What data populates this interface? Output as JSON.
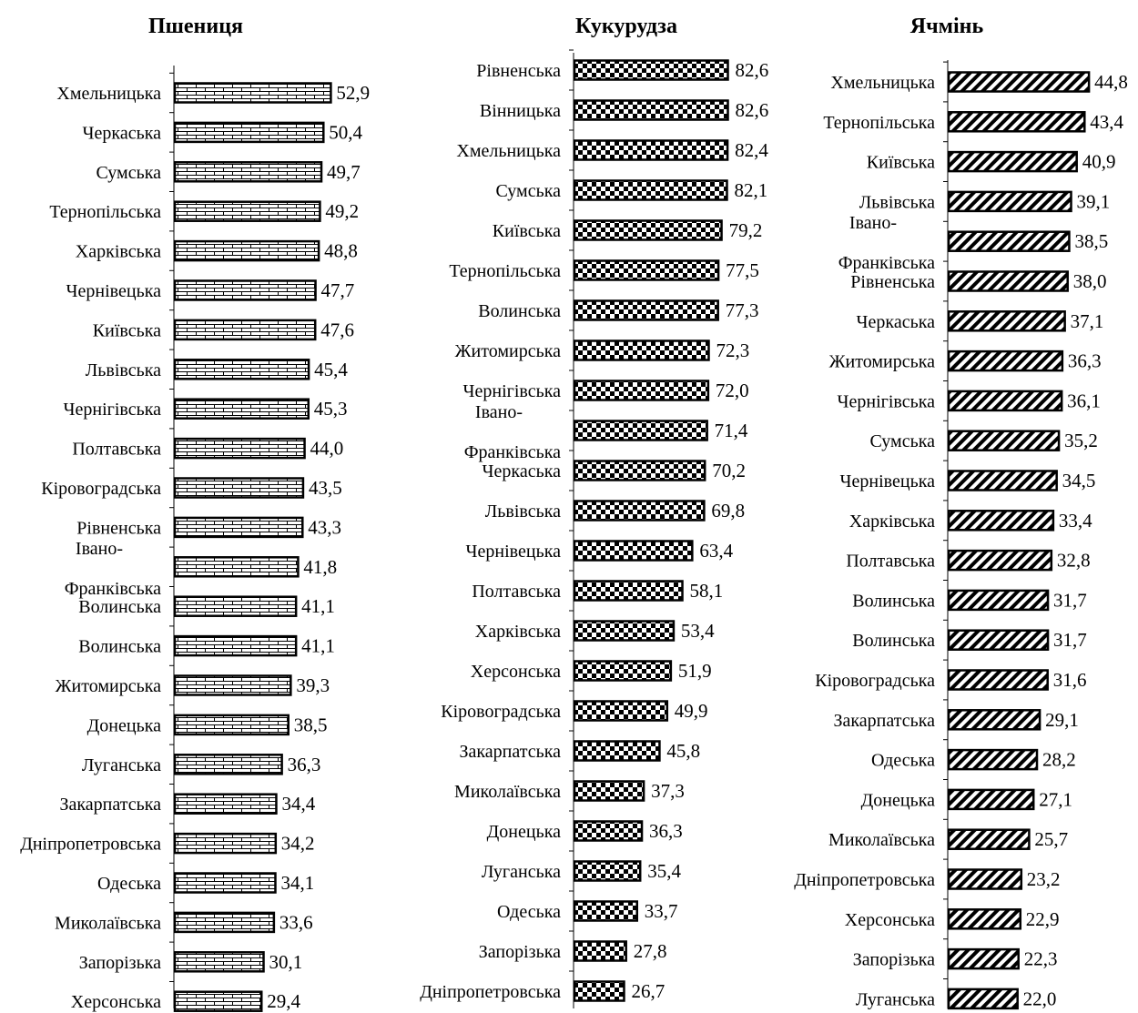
{
  "chart_data": [
    {
      "type": "bar",
      "orientation": "horizontal",
      "title": "Пшениця",
      "categories": [
        "Хмельницька",
        "Черкаська",
        "Сумська",
        "Тернопільська",
        "Харківська",
        "Чернівецька",
        "Київська",
        "Львівська",
        "Чернігівська",
        "Полтавська",
        "Кіровоградська",
        "Рівненська",
        "Івано-Франківська",
        "Волинська",
        "Волинська",
        "Житомирська",
        "Донецька",
        "Луганська",
        "Закарпатська",
        "Дніпропетровська",
        "Одеська",
        "Миколаївська",
        "Запорізька",
        "Херсонська"
      ],
      "values": [
        52.9,
        50.4,
        49.7,
        49.2,
        48.8,
        47.7,
        47.6,
        45.4,
        45.3,
        44.0,
        43.5,
        43.3,
        41.8,
        41.1,
        41.1,
        39.3,
        38.5,
        36.3,
        34.4,
        34.2,
        34.1,
        33.6,
        30.1,
        29.4
      ],
      "value_labels": [
        "52,9",
        "50,4",
        "49,7",
        "49,2",
        "48,8",
        "47,7",
        "47,6",
        "45,4",
        "45,3",
        "44,0",
        "43,5",
        "43,3",
        "41,8",
        "41,1",
        "41,1",
        "39,3",
        "38,5",
        "36,3",
        "34,4",
        "34,2",
        "34,1",
        "33,6",
        "30,1",
        "29,4"
      ],
      "pattern": "brick"
    },
    {
      "type": "bar",
      "orientation": "horizontal",
      "title": "Кукурудза",
      "categories": [
        "Рівненська",
        "Вінницька",
        "Хмельницька",
        "Сумська",
        "Київська",
        "Тернопільська",
        "Волинська",
        "Житомирська",
        "Чернігівська",
        "Івано-Франківська",
        "Черкаська",
        "Львівська",
        "Чернівецька",
        "Полтавська",
        "Харківська",
        "Херсонська",
        "Кіровоградська",
        "Закарпатська",
        "Миколаївська",
        "Донецька",
        "Луганська",
        "Одеська",
        "Запорізька",
        "Дніпропетровська"
      ],
      "values": [
        82.6,
        82.6,
        82.4,
        82.1,
        79.2,
        77.5,
        77.3,
        72.3,
        72.0,
        71.4,
        70.2,
        69.8,
        63.4,
        58.1,
        53.4,
        51.9,
        49.9,
        45.8,
        37.3,
        36.3,
        35.4,
        33.7,
        27.8,
        26.7
      ],
      "value_labels": [
        "82,6",
        "82,6",
        "82,4",
        "82,1",
        "79,2",
        "77,5",
        "77,3",
        "72,3",
        "72,0",
        "71,4",
        "70,2",
        "69,8",
        "63,4",
        "58,1",
        "53,4",
        "51,9",
        "49,9",
        "45,8",
        "37,3",
        "36,3",
        "35,4",
        "33,7",
        "27,8",
        "26,7"
      ],
      "pattern": "checker"
    },
    {
      "type": "bar",
      "orientation": "horizontal",
      "title": "Ячмінь",
      "categories": [
        "Хмельницька",
        "Тернопільська",
        "Київська",
        "Львівська",
        "Івано-Франківська",
        "Рівненська",
        "Черкаська",
        "Житомирська",
        "Чернігівська",
        "Сумська",
        "Чернівецька",
        "Харківська",
        "Полтавська",
        "Волинська",
        "Волинська",
        "Кіровоградська",
        "Закарпатська",
        "Одеська",
        "Донецька",
        "Миколаївська",
        "Дніпропетровська",
        "Херсонська",
        "Запорізька",
        "Луганська"
      ],
      "values": [
        44.8,
        43.4,
        40.9,
        39.1,
        38.5,
        38.0,
        37.1,
        36.3,
        36.1,
        35.2,
        34.5,
        33.4,
        32.8,
        31.7,
        31.7,
        31.6,
        29.1,
        28.2,
        27.1,
        25.7,
        23.2,
        22.9,
        22.3,
        22.0
      ],
      "value_labels": [
        "44,8",
        "43,4",
        "40,9",
        "39,1",
        "38,5",
        "38,0",
        "37,1",
        "36,3",
        "36,1",
        "35,2",
        "34,5",
        "33,4",
        "32,8",
        "31,7",
        "31,7",
        "31,6",
        "29,1",
        "28,2",
        "27,1",
        "25,7",
        "23,2",
        "22,9",
        "22,3",
        "22,0"
      ],
      "pattern": "diagonal"
    }
  ],
  "colors": {
    "bar_stroke": "#000000",
    "bar_fill": "#ffffff",
    "pattern": "#000000"
  }
}
